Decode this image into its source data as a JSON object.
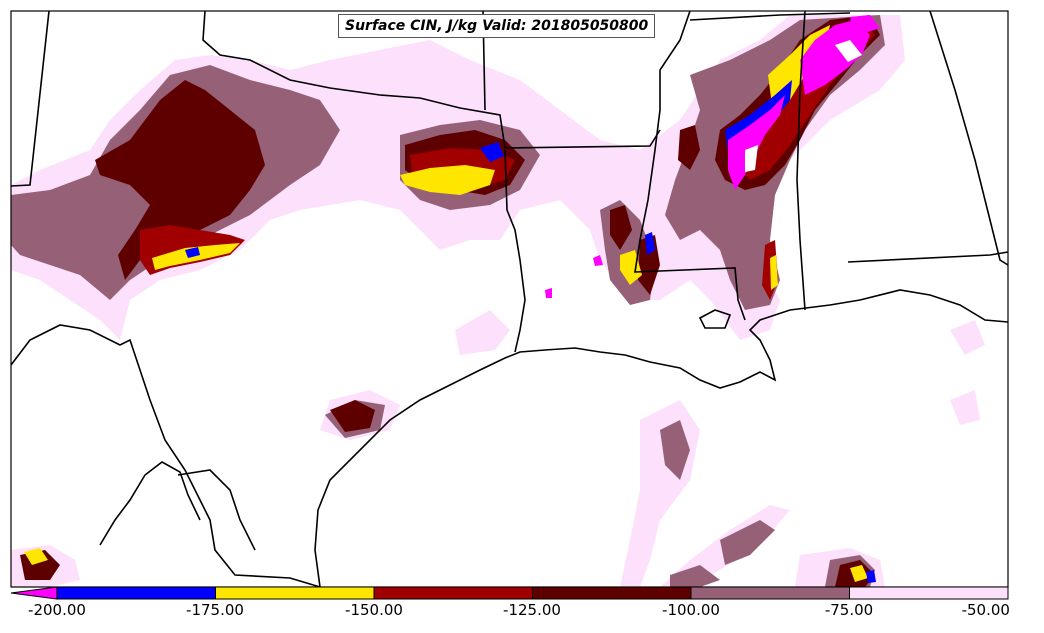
{
  "title": "Surface CIN, J/kg Valid: 201805050800",
  "colorbar": {
    "labels": [
      "-200.00",
      "-175.00",
      "-150.00",
      "-125.00",
      "-100.00",
      "-75.00",
      "-50.00"
    ],
    "colors": [
      "#0000ff",
      "#ffe600",
      "#a00000",
      "#5e0000",
      "#966077",
      "#fde0fb"
    ],
    "extend_color": "#ff00ff"
  },
  "palette": {
    "magenta": "#ff00ff",
    "blue": "#0000ff",
    "yellow": "#ffe600",
    "red": "#a00000",
    "dark_red": "#5e0000",
    "mauve": "#966077",
    "pink": "#fde0fb",
    "background": "#ffffff",
    "lines": "#000000"
  }
}
